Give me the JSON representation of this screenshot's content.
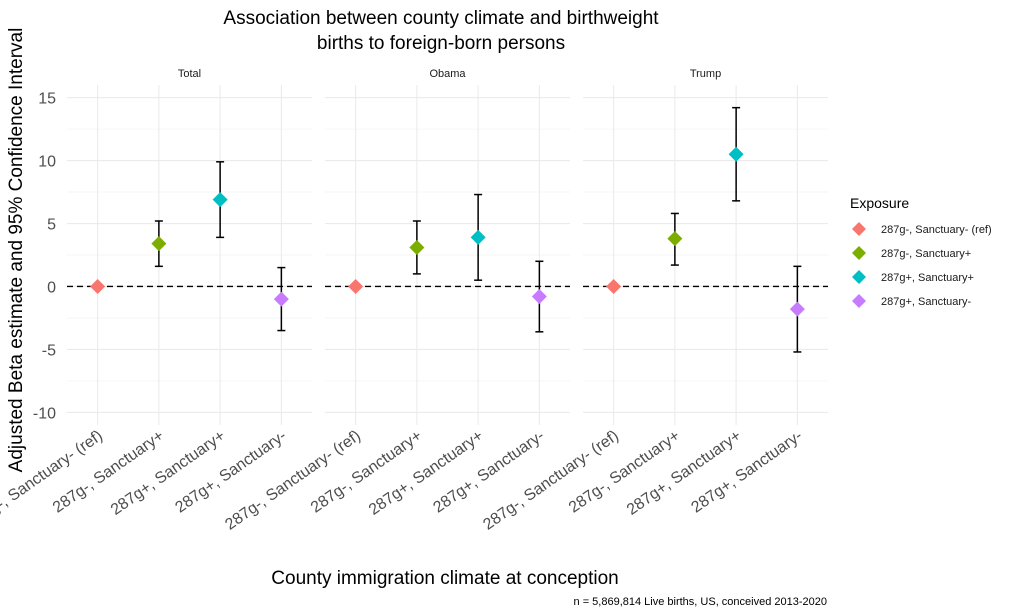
{
  "chart_data": {
    "type": "scatter",
    "title": "Association between county climate and birthweight",
    "subtitle": "births to foreign-born persons",
    "xlabel": "County immigration climate at conception",
    "ylabel": "Adjusted Beta estimate and 95% Confidence Interval",
    "caption": "n = 5,869,814 Live births, US, conceived 2013-2020",
    "ylim": [
      -11,
      16
    ],
    "yticks": [
      "-10",
      "-5",
      "0",
      "5",
      "10",
      "15"
    ],
    "reference_line": 0,
    "categories": [
      "287g-, Sanctuary- (ref)",
      "287g-, Sanctuary+",
      "287g+, Sanctuary+",
      "287g+, Sanctuary-"
    ],
    "facets": [
      {
        "label": "Total",
        "points": [
          {
            "category": "287g-, Sanctuary- (ref)",
            "estimate": 0,
            "lower": null,
            "upper": null
          },
          {
            "category": "287g-, Sanctuary+",
            "estimate": 3.4,
            "lower": 1.6,
            "upper": 5.2
          },
          {
            "category": "287g+, Sanctuary+",
            "estimate": 6.9,
            "lower": 3.9,
            "upper": 9.9
          },
          {
            "category": "287g+, Sanctuary-",
            "estimate": -1.0,
            "lower": -3.5,
            "upper": 1.5
          }
        ]
      },
      {
        "label": "Obama",
        "points": [
          {
            "category": "287g-, Sanctuary- (ref)",
            "estimate": 0,
            "lower": null,
            "upper": null
          },
          {
            "category": "287g-, Sanctuary+",
            "estimate": 3.1,
            "lower": 1.0,
            "upper": 5.2
          },
          {
            "category": "287g+, Sanctuary+",
            "estimate": 3.9,
            "lower": 0.5,
            "upper": 7.3
          },
          {
            "category": "287g+, Sanctuary-",
            "estimate": -0.8,
            "lower": -3.6,
            "upper": 2.0
          }
        ]
      },
      {
        "label": "Trump",
        "points": [
          {
            "category": "287g-, Sanctuary- (ref)",
            "estimate": 0,
            "lower": null,
            "upper": null
          },
          {
            "category": "287g-, Sanctuary+",
            "estimate": 3.8,
            "lower": 1.7,
            "upper": 5.8
          },
          {
            "category": "287g+, Sanctuary+",
            "estimate": 10.5,
            "lower": 6.8,
            "upper": 14.2
          },
          {
            "category": "287g+, Sanctuary-",
            "estimate": -1.8,
            "lower": -5.2,
            "upper": 1.6
          }
        ]
      }
    ],
    "legend": {
      "title": "Exposure",
      "placement": "right",
      "entries": [
        {
          "label": "287g-, Sanctuary- (ref)",
          "color": "#F8766D"
        },
        {
          "label": "287g-, Sanctuary+",
          "color": "#7CAE00"
        },
        {
          "label": "287g+, Sanctuary+",
          "color": "#00BFC4"
        },
        {
          "label": "287g+, Sanctuary-",
          "color": "#C77CFF"
        }
      ]
    },
    "grid": true
  }
}
